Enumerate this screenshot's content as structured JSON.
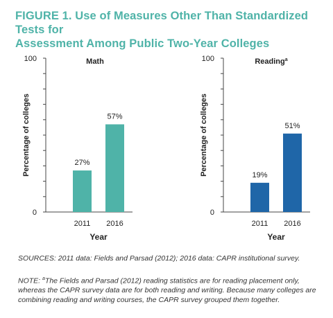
{
  "title": {
    "line1": "FIGURE 1. Use of Measures Other Than Standardized Tests for",
    "line2": "Assessment Among Public Two-Year Colleges"
  },
  "colors": {
    "title": "#4fb3a8",
    "math_bar": "#4fb3a8",
    "reading_bar": "#1f66a8",
    "axis": "#444444"
  },
  "chart_data": [
    {
      "type": "bar",
      "title": "Math",
      "title_superscript": "",
      "categories": [
        "2011",
        "2016"
      ],
      "values": [
        27,
        57
      ],
      "value_labels": [
        "27%",
        "57%"
      ],
      "xlabel": "Year",
      "ylabel": "Percentage of colleges",
      "ylim": [
        0,
        100
      ],
      "ytick_labels": [
        "0",
        "100"
      ],
      "color": "#4fb3a8",
      "grid": false
    },
    {
      "type": "bar",
      "title": "Reading",
      "title_superscript": "a",
      "categories": [
        "2011",
        "2016"
      ],
      "values": [
        19,
        51
      ],
      "value_labels": [
        "19%",
        "51%"
      ],
      "xlabel": "Year",
      "ylabel": "Percentage of colleges",
      "ylim": [
        0,
        100
      ],
      "ytick_labels": [
        "0",
        "100"
      ],
      "color": "#1f66a8",
      "grid": false
    }
  ],
  "sources": "SOURCES: 2011 data: Fields and Parsad (2012); 2016 data: CAPR institutional survey.",
  "note": {
    "prefix": "NOTE: ",
    "marker": "a",
    "text": "The Fields and Parsad (2012) reading statistics are for reading placement only, whereas the CAPR survey data are for both reading and writing. Because many colleges are combining reading and writing courses, the CAPR survey grouped them together."
  }
}
